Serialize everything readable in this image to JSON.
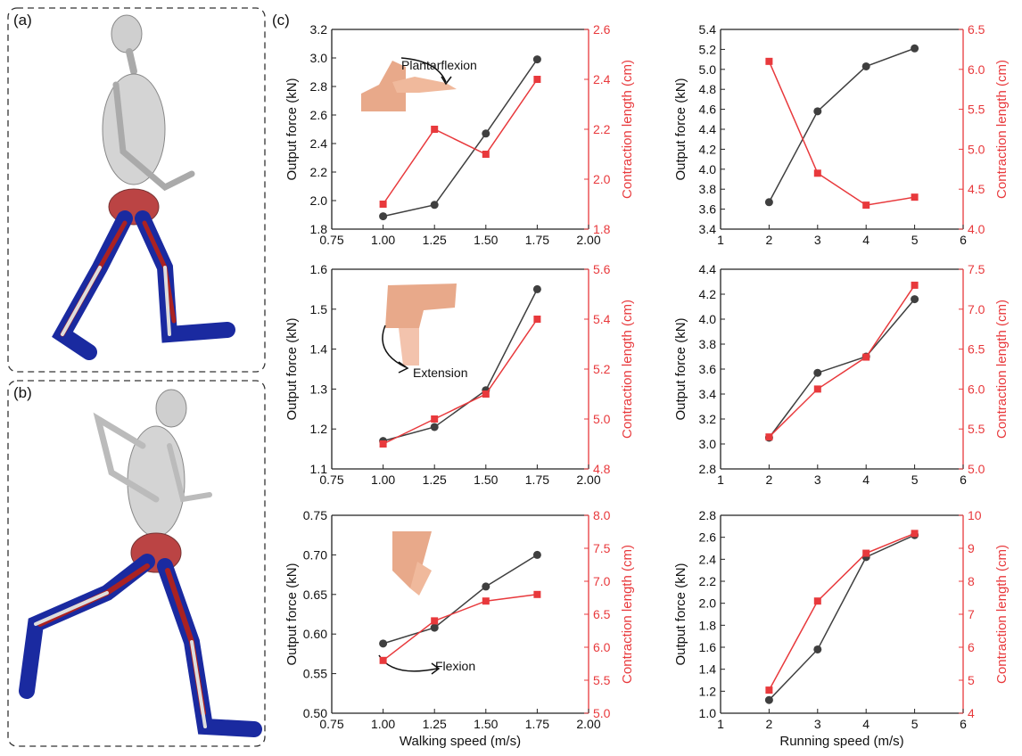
{
  "panel_labels": [
    "(a)",
    "(b)",
    "(c)"
  ],
  "chart_data": [
    {
      "type": "line",
      "ylabel": "Output force (kN)",
      "y2label": "Contraction length (cm)",
      "annotation": "Plantarflexion",
      "x": [
        1.0,
        1.25,
        1.5,
        1.75
      ],
      "xlim": [
        0.75,
        2.0
      ],
      "xticks": [
        0.75,
        {
          "value": 1,
          "label": "1.00"
        },
        1.25,
        {
          "value": 1.5,
          "label": "1.50"
        },
        1.75,
        {
          "value": 2,
          "label": "2.00"
        }
      ],
      "ylim": [
        1.8,
        3.2
      ],
      "yticks": [
        1.8,
        {
          "value": 2,
          "label": "2.0"
        },
        2.2,
        2.4,
        2.6,
        2.8,
        {
          "value": 3,
          "label": "3.0"
        },
        3.2
      ],
      "y2lim": [
        1.8,
        2.6
      ],
      "y2ticks": [
        1.8,
        {
          "value": 2,
          "label": "2.0"
        },
        2.2,
        2.4,
        2.6
      ],
      "series": [
        {
          "color": "#3f3f3f",
          "marker": "circle",
          "values": [
            1.89,
            1.97,
            2.47,
            2.99
          ]
        },
        {
          "color": "#e8393c",
          "marker": "square",
          "axis": "y2",
          "values": [
            1.9,
            2.2,
            2.1,
            2.4
          ]
        }
      ]
    },
    {
      "type": "line",
      "ylabel": "Output force (kN)",
      "y2label": "Contraction length (cm)",
      "x": [
        2,
        3,
        4,
        5
      ],
      "xlim": [
        1,
        6
      ],
      "xticks": [
        1,
        2,
        3,
        4,
        5,
        6
      ],
      "ylim": [
        3.4,
        5.4
      ],
      "yticks": [
        3.4,
        3.6,
        3.8,
        {
          "value": 4,
          "label": "4.0"
        },
        4.2,
        4.4,
        4.6,
        4.8,
        {
          "value": 5,
          "label": "5.0"
        },
        5.2,
        5.4
      ],
      "y2lim": [
        4.0,
        6.5
      ],
      "y2ticks": [
        {
          "value": 4,
          "label": "4.0"
        },
        4.5,
        {
          "value": 5,
          "label": "5.0"
        },
        5.5,
        {
          "value": 6,
          "label": "6.0"
        },
        6.5
      ],
      "series": [
        {
          "color": "#3f3f3f",
          "marker": "circle",
          "values": [
            3.67,
            4.58,
            5.03,
            5.21
          ]
        },
        {
          "color": "#e8393c",
          "marker": "square",
          "axis": "y2",
          "values": [
            6.1,
            4.7,
            4.3,
            4.4
          ]
        }
      ]
    },
    {
      "type": "line",
      "ylabel": "Output force (kN)",
      "y2label": "Contraction length (cm)",
      "annotation": "Extension",
      "x": [
        1.0,
        1.25,
        1.5,
        1.75
      ],
      "xlim": [
        0.75,
        2.0
      ],
      "xticks": [
        0.75,
        {
          "value": 1,
          "label": "1.00"
        },
        1.25,
        {
          "value": 1.5,
          "label": "1.50"
        },
        1.75,
        {
          "value": 2,
          "label": "2.00"
        }
      ],
      "ylim": [
        1.1,
        1.6
      ],
      "yticks": [
        1.1,
        1.2,
        1.3,
        1.4,
        1.5,
        1.6
      ],
      "y2lim": [
        4.8,
        5.6
      ],
      "y2ticks": [
        4.8,
        {
          "value": 5,
          "label": "5.0"
        },
        5.2,
        5.4,
        5.6
      ],
      "series": [
        {
          "color": "#3f3f3f",
          "marker": "circle",
          "values": [
            1.17,
            1.205,
            1.297,
            1.55
          ]
        },
        {
          "color": "#e8393c",
          "marker": "square",
          "axis": "y2",
          "values": [
            4.9,
            5.0,
            5.1,
            5.4
          ]
        }
      ]
    },
    {
      "type": "line",
      "ylabel": "Output force (kN)",
      "y2label": "Contraction length (cm)",
      "x": [
        2,
        3,
        4,
        5
      ],
      "xlim": [
        1,
        6
      ],
      "xticks": [
        1,
        2,
        3,
        4,
        5,
        6
      ],
      "ylim": [
        2.8,
        4.4
      ],
      "yticks": [
        2.8,
        {
          "value": 3,
          "label": "3.0"
        },
        3.2,
        3.4,
        3.6,
        3.8,
        {
          "value": 4,
          "label": "4.0"
        },
        4.2,
        4.4
      ],
      "y2lim": [
        5.0,
        7.5
      ],
      "y2ticks": [
        {
          "value": 5,
          "label": "5.0"
        },
        5.5,
        {
          "value": 6,
          "label": "6.0"
        },
        6.5,
        {
          "value": 7,
          "label": "7.0"
        },
        7.5
      ],
      "series": [
        {
          "color": "#3f3f3f",
          "marker": "circle",
          "values": [
            3.05,
            3.57,
            3.7,
            4.16
          ]
        },
        {
          "color": "#e8393c",
          "marker": "square",
          "axis": "y2",
          "values": [
            5.4,
            6.0,
            6.4,
            7.3
          ]
        }
      ]
    },
    {
      "type": "line",
      "xlabel": "Walking speed (m/s)",
      "ylabel": "Output force (kN)",
      "y2label": "Contraction length (cm)",
      "annotation": "Flexion",
      "x": [
        1.0,
        1.25,
        1.5,
        1.75
      ],
      "xlim": [
        0.75,
        2.0
      ],
      "xticks": [
        0.75,
        {
          "value": 1,
          "label": "1.00"
        },
        1.25,
        {
          "value": 1.5,
          "label": "1.50"
        },
        1.75,
        {
          "value": 2,
          "label": "2.00"
        }
      ],
      "ylim": [
        0.5,
        0.75
      ],
      "yticks": [
        {
          "value": 0.5,
          "label": "0.50"
        },
        0.55,
        {
          "value": 0.6,
          "label": "0.60"
        },
        0.65,
        {
          "value": 0.7,
          "label": "0.70"
        },
        0.75
      ],
      "y2lim": [
        5.0,
        8.0
      ],
      "y2ticks": [
        {
          "value": 5,
          "label": "5.0"
        },
        5.5,
        {
          "value": 6,
          "label": "6.0"
        },
        6.5,
        {
          "value": 7,
          "label": "7.0"
        },
        7.5,
        {
          "value": 8,
          "label": "8.0"
        }
      ],
      "series": [
        {
          "color": "#3f3f3f",
          "marker": "circle",
          "values": [
            0.588,
            0.608,
            0.66,
            0.7
          ]
        },
        {
          "color": "#e8393c",
          "marker": "square",
          "axis": "y2",
          "values": [
            5.8,
            6.4,
            6.7,
            6.8
          ]
        }
      ]
    },
    {
      "type": "line",
      "xlabel": "Running speed (m/s)",
      "ylabel": "Output force (kN)",
      "y2label": "Contraction length (cm)",
      "x": [
        2,
        3,
        4,
        5
      ],
      "xlim": [
        1,
        6
      ],
      "xticks": [
        1,
        2,
        3,
        4,
        5,
        6
      ],
      "ylim": [
        1.0,
        2.8
      ],
      "yticks": [
        {
          "value": 1,
          "label": "1.0"
        },
        1.2,
        1.4,
        1.6,
        1.8,
        {
          "value": 2,
          "label": "2.0"
        },
        2.2,
        2.4,
        2.6,
        2.8
      ],
      "y2lim": [
        4,
        10
      ],
      "y2ticks": [
        4,
        5,
        6,
        7,
        8,
        9,
        10
      ],
      "series": [
        {
          "color": "#3f3f3f",
          "marker": "circle",
          "values": [
            1.12,
            1.58,
            2.42,
            2.62
          ]
        },
        {
          "color": "#e8393c",
          "marker": "square",
          "axis": "y2",
          "values": [
            4.7,
            7.4,
            8.85,
            9.45
          ]
        }
      ]
    }
  ]
}
